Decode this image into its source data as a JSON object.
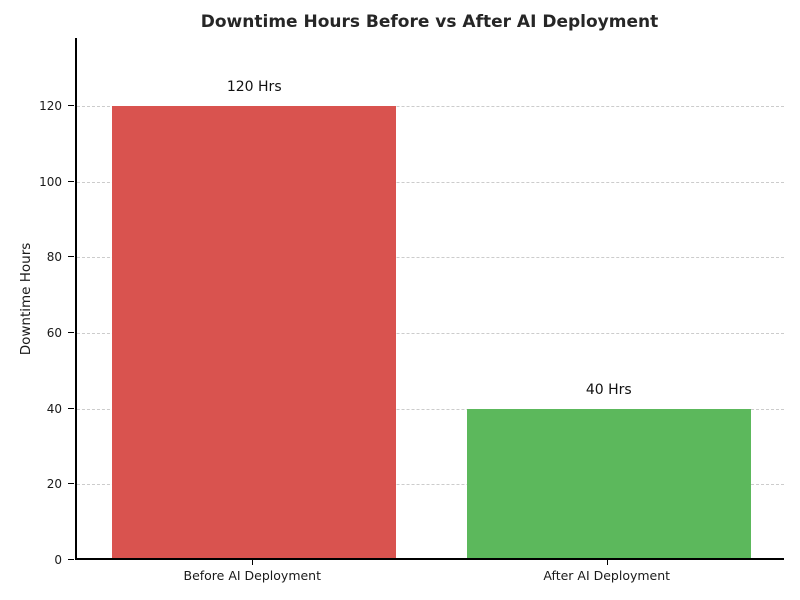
{
  "chart_data": {
    "type": "bar",
    "title": "Downtime Hours Before vs After AI Deployment",
    "xlabel": "",
    "ylabel": "Downtime Hours",
    "categories": [
      "Before AI Deployment",
      "After AI Deployment"
    ],
    "values": [
      120,
      40
    ],
    "value_labels": [
      "120 Hrs",
      "40 Hrs"
    ],
    "bar_colors": [
      "#d9534f",
      "#5cb85c"
    ],
    "ylim": [
      0,
      138
    ],
    "y_ticks": [
      0,
      20,
      40,
      60,
      80,
      100,
      120
    ],
    "grid": "horizontal-dashed",
    "legend": "none"
  }
}
